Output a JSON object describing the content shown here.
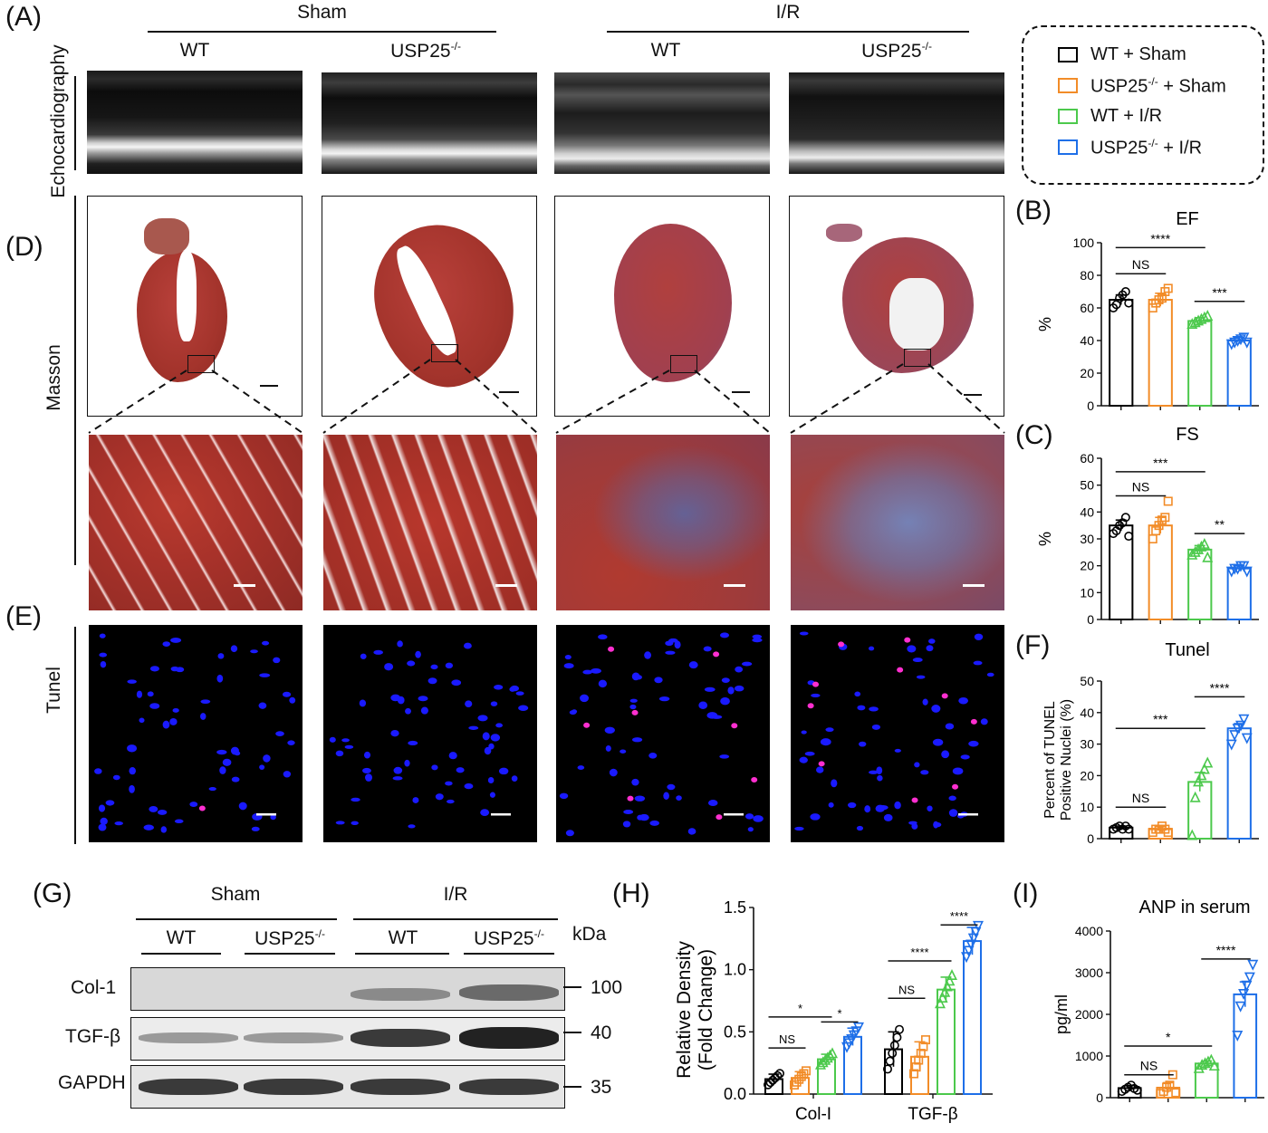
{
  "panel_letters": {
    "A": "(A)",
    "B": "(B)",
    "C": "(C)",
    "D": "(D)",
    "E": "(E)",
    "F": "(F)",
    "G": "(G)",
    "H": "(H)",
    "I": "(I)"
  },
  "top_groups": {
    "sham": "Sham",
    "ir": "I/R"
  },
  "top_subgroups": {
    "wt": "WT",
    "ko": "USP25"
  },
  "ko_sup": "-/-",
  "row_labels": {
    "echo": "Echocardiography",
    "masson": "Masson",
    "tunel": "Tunel"
  },
  "legend": [
    {
      "label": "WT + Sham",
      "sup": "",
      "color": "#000000"
    },
    {
      "label": "USP25",
      "sup": "-/-",
      "suffix": " + Sham",
      "color": "#F28C28"
    },
    {
      "label": "WT + I/R",
      "sup": "",
      "color": "#4CC94C"
    },
    {
      "label": "USP25",
      "sup": "-/-",
      "suffix": " + I/R",
      "color": "#1E6FE8"
    }
  ],
  "colors": {
    "wt_sham": "#000000",
    "ko_sham": "#F28C28",
    "wt_ir": "#4CC94C",
    "ko_ir": "#1E6FE8"
  },
  "blot": {
    "groups": [
      "Sham",
      "I/R"
    ],
    "subgroups": [
      "WT",
      "USP25",
      "WT",
      "USP25"
    ],
    "kda_label": "kDa",
    "rows": [
      {
        "name": "Col-1",
        "kda": "100"
      },
      {
        "name": "TGF-β",
        "kda": "40"
      },
      {
        "name": "GAPDH",
        "kda": "35"
      }
    ]
  },
  "chart_data": [
    {
      "id": "B",
      "type": "bar",
      "title": "EF",
      "ylabel": "%",
      "ylim": [
        0,
        100
      ],
      "yticks": [
        0,
        20,
        40,
        60,
        80,
        100
      ],
      "categories": [
        "WT + Sham",
        "USP25-/- + Sham",
        "WT + I/R",
        "USP25-/- + I/R"
      ],
      "values": [
        65,
        65,
        52,
        40
      ],
      "errors": [
        3,
        4,
        2,
        2
      ],
      "points": [
        [
          60,
          62,
          66,
          68,
          70,
          63
        ],
        [
          60,
          63,
          65,
          66,
          70,
          72
        ],
        [
          50,
          51,
          52,
          53,
          54,
          55
        ],
        [
          38,
          39,
          40,
          41,
          42,
          39
        ]
      ],
      "markers": [
        "circle",
        "square",
        "triangle",
        "triangle-down"
      ],
      "significance": [
        {
          "from": 0,
          "to": 2,
          "label": "****",
          "y": 97
        },
        {
          "from": 0,
          "to": 1,
          "label": "NS",
          "y": 81
        },
        {
          "from": 2,
          "to": 3,
          "label": "***",
          "y": 64
        }
      ]
    },
    {
      "id": "C",
      "type": "bar",
      "title": "FS",
      "ylabel": "%",
      "ylim": [
        0,
        60
      ],
      "yticks": [
        0,
        10,
        20,
        30,
        40,
        50,
        60
      ],
      "categories": [
        "WT + Sham",
        "USP25-/- + Sham",
        "WT + I/R",
        "USP25-/- + I/R"
      ],
      "values": [
        35,
        35,
        26,
        19
      ],
      "errors": [
        2,
        3,
        1.5,
        1
      ],
      "points": [
        [
          32,
          33,
          35,
          36,
          38,
          31
        ],
        [
          30,
          33,
          35,
          37,
          38,
          44
        ],
        [
          24,
          25,
          26,
          27,
          28,
          23
        ],
        [
          18,
          19,
          19,
          20,
          20,
          18
        ]
      ],
      "markers": [
        "circle",
        "square",
        "triangle",
        "triangle-down"
      ],
      "significance": [
        {
          "from": 0,
          "to": 2,
          "label": "***",
          "y": 55
        },
        {
          "from": 0,
          "to": 1,
          "label": "NS",
          "y": 46
        },
        {
          "from": 2,
          "to": 3,
          "label": "**",
          "y": 32
        }
      ]
    },
    {
      "id": "F",
      "type": "bar",
      "title": "Tunel",
      "ylabel": "Percent of TUNEL",
      "ylabel2": "Positive Nuclei (%)",
      "ylim": [
        0,
        50
      ],
      "yticks": [
        0,
        10,
        20,
        30,
        40,
        50
      ],
      "categories": [
        "WT + Sham",
        "USP25-/- + Sham",
        "WT + I/R",
        "USP25-/- + I/R"
      ],
      "values": [
        3.5,
        3,
        18,
        35
      ],
      "errors": [
        0.5,
        0.8,
        3,
        1.5
      ],
      "points": [
        [
          3,
          3.5,
          4,
          3,
          4,
          3
        ],
        [
          2,
          3,
          3,
          4,
          3,
          2
        ],
        [
          1,
          13,
          18,
          20,
          22,
          24
        ],
        [
          30,
          33,
          35,
          36,
          38,
          32
        ]
      ],
      "markers": [
        "circle",
        "square",
        "triangle",
        "triangle-down"
      ],
      "significance": [
        {
          "from": 2,
          "to": 3,
          "label": "****",
          "y": 45
        },
        {
          "from": 0,
          "to": 2,
          "label": "***",
          "y": 35
        },
        {
          "from": 0,
          "to": 1,
          "label": "NS",
          "y": 10
        }
      ]
    },
    {
      "id": "H",
      "type": "bar",
      "title": "",
      "ylabel": "Relative Density",
      "ylabel2": "(Fold Change)",
      "ylim": [
        0,
        1.5
      ],
      "yticks": [
        0.0,
        0.5,
        1.0,
        1.5
      ],
      "yticklabels": [
        "0.0",
        "0.5",
        "1.0",
        "1.5"
      ],
      "groups": [
        "Col-I",
        "TGF-β"
      ],
      "categories": [
        "WT + Sham",
        "USP25-/- + Sham",
        "WT + I/R",
        "USP25-/- + I/R"
      ],
      "values": [
        [
          0.12,
          0.13,
          0.28,
          0.46
        ],
        [
          0.36,
          0.3,
          0.84,
          1.23
        ]
      ],
      "errors": [
        [
          0.04,
          0.05,
          0.04,
          0.07
        ],
        [
          0.14,
          0.12,
          0.1,
          0.11
        ]
      ],
      "significance": [
        {
          "group": 0,
          "from": 0,
          "to": 2,
          "label": "*",
          "y": 0.62
        },
        {
          "group": 0,
          "from": 0,
          "to": 1,
          "label": "NS",
          "y": 0.37
        },
        {
          "group": 0,
          "from": 2,
          "to": 3,
          "label": "*",
          "y": 0.58
        },
        {
          "group": 1,
          "from": 0,
          "to": 2,
          "label": "****",
          "y": 1.07
        },
        {
          "group": 1,
          "from": 0,
          "to": 1,
          "label": "NS",
          "y": 0.77
        },
        {
          "group": 1,
          "from": 2,
          "to": 3,
          "label": "****",
          "y": 1.36
        }
      ]
    },
    {
      "id": "I",
      "type": "bar",
      "title": "ANP in serum",
      "ylabel": "pg/ml",
      "ylim": [
        0,
        4000
      ],
      "yticks": [
        0,
        1000,
        2000,
        3000,
        4000
      ],
      "categories": [
        "WT + Sham",
        "USP25-/- + Sham",
        "WT + I/R",
        "USP25-/- + I/R"
      ],
      "values": [
        230,
        240,
        820,
        2480
      ],
      "errors": [
        60,
        120,
        60,
        300
      ],
      "points": [
        [
          150,
          200,
          250,
          300,
          220,
          180
        ],
        [
          100,
          150,
          250,
          300,
          550,
          120
        ],
        [
          700,
          780,
          820,
          860,
          900,
          760
        ],
        [
          1500,
          2200,
          2500,
          2700,
          2900,
          3200
        ]
      ],
      "markers": [
        "circle",
        "square",
        "triangle",
        "triangle-down"
      ],
      "significance": [
        {
          "from": 2,
          "to": 3,
          "label": "****",
          "y": 3330
        },
        {
          "from": 0,
          "to": 2,
          "label": "*",
          "y": 1240
        },
        {
          "from": 0,
          "to": 1,
          "label": "NS",
          "y": 550
        }
      ]
    }
  ]
}
